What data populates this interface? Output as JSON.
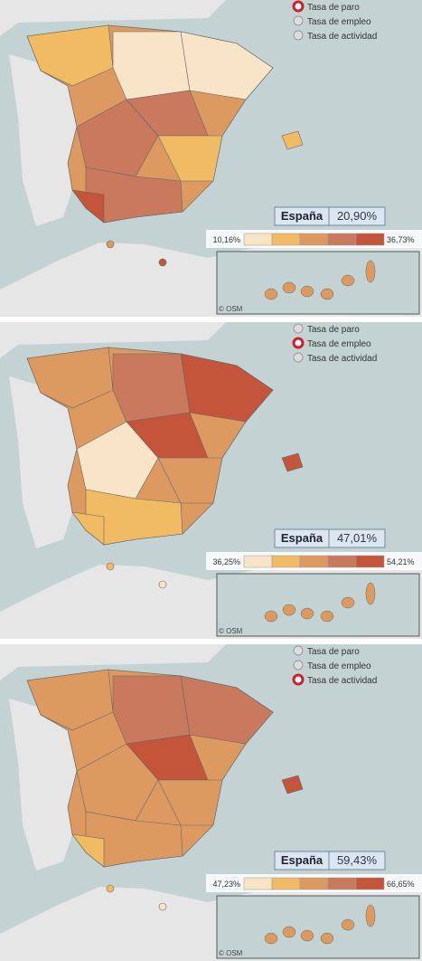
{
  "panels": [
    {
      "options": [
        {
          "label": "Tasa de paro",
          "selected": true
        },
        {
          "label": "Tasa de empleo",
          "selected": false
        },
        {
          "label": "Tasa de actividad",
          "selected": false
        }
      ],
      "summary": {
        "label": "España",
        "value": "20,90%"
      },
      "legend": {
        "min": "10,16%",
        "max": "36,73%"
      },
      "credit": "© OSM"
    },
    {
      "options": [
        {
          "label": "Tasa de paro",
          "selected": false
        },
        {
          "label": "Tasa de empleo",
          "selected": true
        },
        {
          "label": "Tasa de actividad",
          "selected": false
        }
      ],
      "summary": {
        "label": "España",
        "value": "47,01%"
      },
      "legend": {
        "min": "36,25%",
        "max": "54,21%"
      },
      "credit": "© OSM"
    },
    {
      "options": [
        {
          "label": "Tasa de paro",
          "selected": false
        },
        {
          "label": "Tasa de empleo",
          "selected": false
        },
        {
          "label": "Tasa de actividad",
          "selected": true
        }
      ],
      "summary": {
        "label": "España",
        "value": "59,43%"
      },
      "legend": {
        "min": "47,23%",
        "max": "66,65%"
      },
      "credit": "© OSM"
    }
  ],
  "legend_colors": [
    "#f8e4c6",
    "#f0bb62",
    "#dc9a60",
    "#c97a5e",
    "#c4553a"
  ]
}
